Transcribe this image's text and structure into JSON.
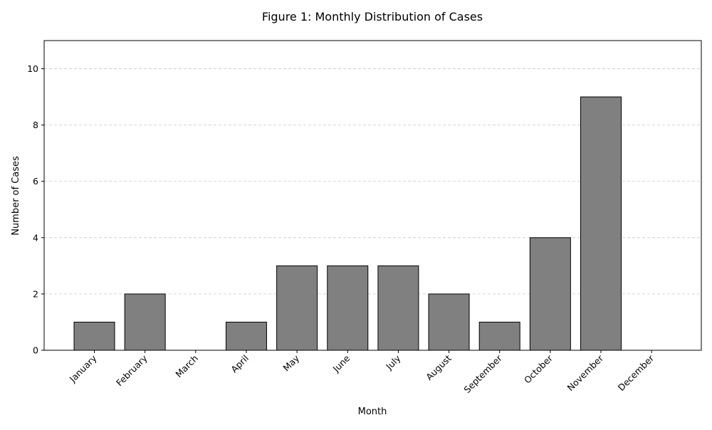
{
  "chart_data": {
    "type": "bar",
    "title": "Figure 1: Monthly Distribution of Cases",
    "xlabel": "Month",
    "ylabel": "Number of Cases",
    "categories": [
      "January",
      "February",
      "March",
      "April",
      "May",
      "June",
      "July",
      "August",
      "September",
      "October",
      "November",
      "December"
    ],
    "values": [
      1,
      2,
      0,
      1,
      3,
      3,
      3,
      2,
      1,
      4,
      9,
      0
    ],
    "ylim": [
      0,
      11
    ],
    "yticks": [
      0,
      2,
      4,
      6,
      8,
      10
    ],
    "grid": true,
    "grid_axis": "y",
    "legend": false,
    "bar_color": "#808080",
    "bar_edge_color": "#000000",
    "grid_color": "#c8c8c8",
    "x_tick_rotation": 45
  }
}
